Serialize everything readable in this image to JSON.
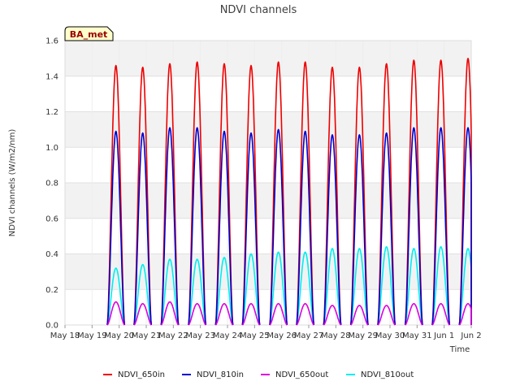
{
  "chart_data": {
    "type": "line",
    "title": "NDVI channels",
    "xlabel": "Time",
    "ylabel": "NDVI channels (W/m2/nm)",
    "badge": "BA_met",
    "x_unit": "day of May (Jun 1 = day 32)",
    "xlim": [
      18,
      33
    ],
    "ylim": [
      0.0,
      1.6
    ],
    "yticks": [
      "0.0",
      "0.2",
      "0.4",
      "0.6",
      "0.8",
      "1.0",
      "1.2",
      "1.4",
      "1.6"
    ],
    "ytick_values": [
      0.0,
      0.2,
      0.4,
      0.6,
      0.8,
      1.0,
      1.2,
      1.4,
      1.6
    ],
    "xticks": [
      "May 18",
      "May 19",
      "May 20",
      "May 21",
      "May 22",
      "May 23",
      "May 24",
      "May 25",
      "May 26",
      "May 27",
      "May 28",
      "May 29",
      "May 30",
      "May 31",
      "Jun 1",
      "Jun 2"
    ],
    "xtick_values": [
      18,
      19,
      20,
      21,
      22,
      23,
      24,
      25,
      26,
      27,
      28,
      29,
      30,
      31,
      32,
      33
    ],
    "grid": true,
    "legend_position": "bottom",
    "peak_times": [
      19.88,
      20.87,
      21.87,
      22.88,
      23.88,
      24.87,
      25.88,
      26.87,
      27.87,
      28.87,
      29.87,
      30.88,
      31.88,
      32.88
    ],
    "series": [
      {
        "name": "NDVI_650in",
        "color": "#ee0000",
        "peaks": [
          1.46,
          1.45,
          1.47,
          1.48,
          1.47,
          1.46,
          1.48,
          1.48,
          1.45,
          1.45,
          1.47,
          1.49,
          1.49,
          1.5
        ]
      },
      {
        "name": "NDVI_810in",
        "color": "#0000cc",
        "peaks": [
          1.09,
          1.08,
          1.11,
          1.11,
          1.09,
          1.08,
          1.1,
          1.09,
          1.07,
          1.07,
          1.08,
          1.11,
          1.11,
          1.11
        ]
      },
      {
        "name": "NDVI_650out",
        "color": "#dd00dd",
        "peaks": [
          0.13,
          0.12,
          0.13,
          0.12,
          0.12,
          0.12,
          0.12,
          0.12,
          0.11,
          0.11,
          0.11,
          0.12,
          0.12,
          0.12
        ]
      },
      {
        "name": "NDVI_810out",
        "color": "#00eeee",
        "peaks": [
          0.32,
          0.34,
          0.37,
          0.37,
          0.38,
          0.4,
          0.41,
          0.41,
          0.43,
          0.43,
          0.44,
          0.43,
          0.44,
          0.43
        ]
      }
    ]
  }
}
